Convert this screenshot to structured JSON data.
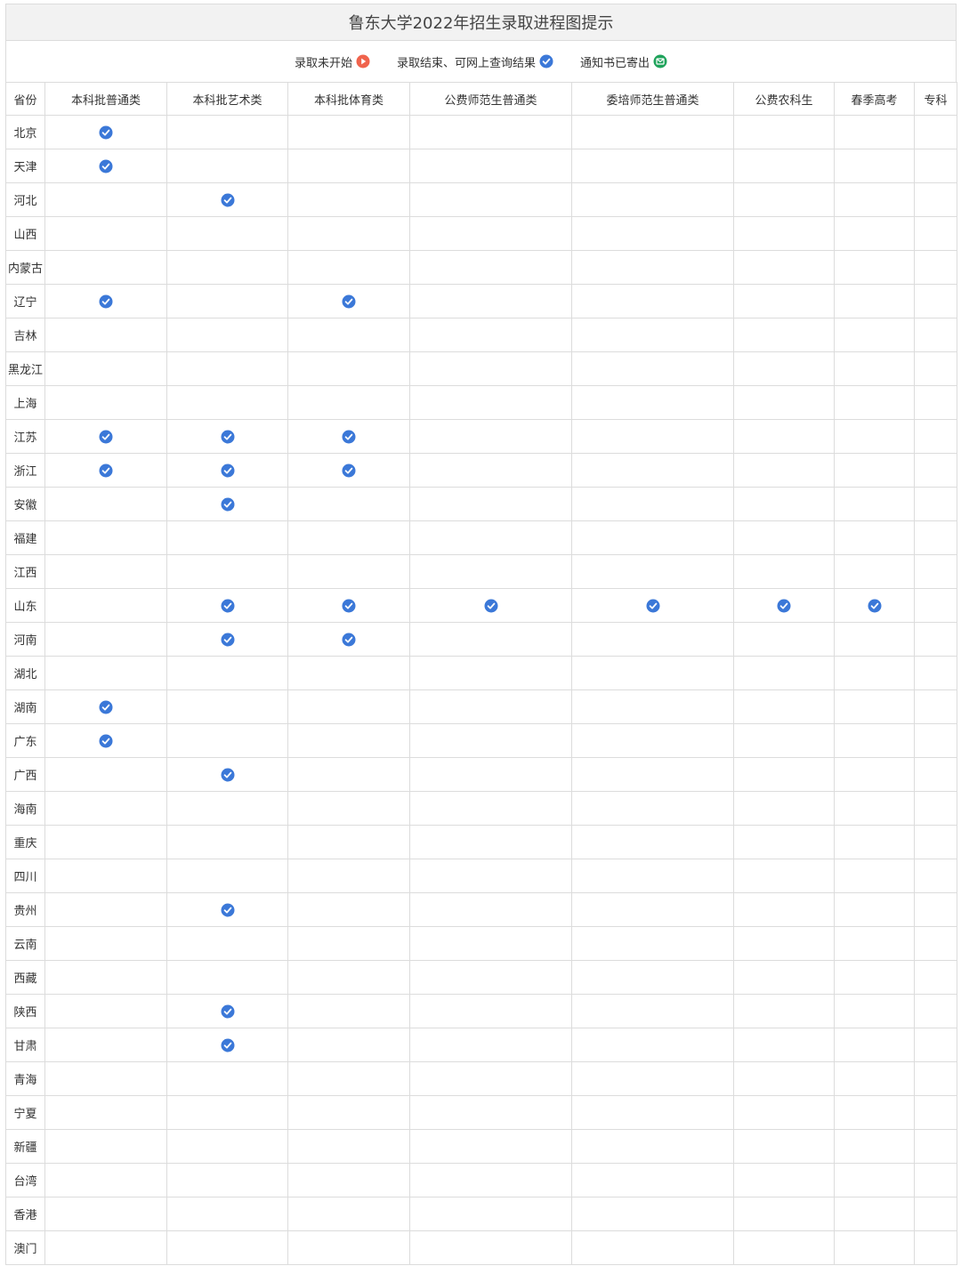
{
  "title": "鲁东大学2022年招生录取进程图提示",
  "legend": [
    {
      "label": "录取未开始",
      "icon": "play-icon",
      "color": "#f0634c"
    },
    {
      "label": "录取结束、可网上查询结果",
      "icon": "check-circle-icon",
      "color": "#3b78d8"
    },
    {
      "label": "通知书已寄出",
      "icon": "mail-icon",
      "color": "#1fa35b"
    }
  ],
  "table": {
    "province_header": "省份",
    "columns": [
      "本科批普通类",
      "本科批艺术类",
      "本科批体育类",
      "公费师范生普通类",
      "委培师范生普通类",
      "公费农科生",
      "春季高考",
      "专科"
    ],
    "rows": [
      {
        "province": "北京",
        "cells": [
          "done",
          "",
          "",
          "",
          "",
          "",
          "",
          ""
        ]
      },
      {
        "province": "天津",
        "cells": [
          "done",
          "",
          "",
          "",
          "",
          "",
          "",
          ""
        ]
      },
      {
        "province": "河北",
        "cells": [
          "",
          "done",
          "",
          "",
          "",
          "",
          "",
          ""
        ]
      },
      {
        "province": "山西",
        "cells": [
          "",
          "",
          "",
          "",
          "",
          "",
          "",
          ""
        ]
      },
      {
        "province": "内蒙古",
        "cells": [
          "",
          "",
          "",
          "",
          "",
          "",
          "",
          ""
        ]
      },
      {
        "province": "辽宁",
        "cells": [
          "done",
          "",
          "done",
          "",
          "",
          "",
          "",
          ""
        ]
      },
      {
        "province": "吉林",
        "cells": [
          "",
          "",
          "",
          "",
          "",
          "",
          "",
          ""
        ]
      },
      {
        "province": "黑龙江",
        "cells": [
          "",
          "",
          "",
          "",
          "",
          "",
          "",
          ""
        ]
      },
      {
        "province": "上海",
        "cells": [
          "",
          "",
          "",
          "",
          "",
          "",
          "",
          ""
        ]
      },
      {
        "province": "江苏",
        "cells": [
          "done",
          "done",
          "done",
          "",
          "",
          "",
          "",
          ""
        ]
      },
      {
        "province": "浙江",
        "cells": [
          "done",
          "done",
          "done",
          "",
          "",
          "",
          "",
          ""
        ]
      },
      {
        "province": "安徽",
        "cells": [
          "",
          "done",
          "",
          "",
          "",
          "",
          "",
          ""
        ]
      },
      {
        "province": "福建",
        "cells": [
          "",
          "",
          "",
          "",
          "",
          "",
          "",
          ""
        ]
      },
      {
        "province": "江西",
        "cells": [
          "",
          "",
          "",
          "",
          "",
          "",
          "",
          ""
        ]
      },
      {
        "province": "山东",
        "cells": [
          "",
          "done",
          "done",
          "done",
          "done",
          "done",
          "done",
          ""
        ]
      },
      {
        "province": "河南",
        "cells": [
          "",
          "done",
          "done",
          "",
          "",
          "",
          "",
          ""
        ]
      },
      {
        "province": "湖北",
        "cells": [
          "",
          "",
          "",
          "",
          "",
          "",
          "",
          ""
        ]
      },
      {
        "province": "湖南",
        "cells": [
          "done",
          "",
          "",
          "",
          "",
          "",
          "",
          ""
        ]
      },
      {
        "province": "广东",
        "cells": [
          "done",
          "",
          "",
          "",
          "",
          "",
          "",
          ""
        ]
      },
      {
        "province": "广西",
        "cells": [
          "",
          "done",
          "",
          "",
          "",
          "",
          "",
          ""
        ]
      },
      {
        "province": "海南",
        "cells": [
          "",
          "",
          "",
          "",
          "",
          "",
          "",
          ""
        ]
      },
      {
        "province": "重庆",
        "cells": [
          "",
          "",
          "",
          "",
          "",
          "",
          "",
          ""
        ]
      },
      {
        "province": "四川",
        "cells": [
          "",
          "",
          "",
          "",
          "",
          "",
          "",
          ""
        ]
      },
      {
        "province": "贵州",
        "cells": [
          "",
          "done",
          "",
          "",
          "",
          "",
          "",
          ""
        ]
      },
      {
        "province": "云南",
        "cells": [
          "",
          "",
          "",
          "",
          "",
          "",
          "",
          ""
        ]
      },
      {
        "province": "西藏",
        "cells": [
          "",
          "",
          "",
          "",
          "",
          "",
          "",
          ""
        ]
      },
      {
        "province": "陕西",
        "cells": [
          "",
          "done",
          "",
          "",
          "",
          "",
          "",
          ""
        ]
      },
      {
        "province": "甘肃",
        "cells": [
          "",
          "done",
          "",
          "",
          "",
          "",
          "",
          ""
        ]
      },
      {
        "province": "青海",
        "cells": [
          "",
          "",
          "",
          "",
          "",
          "",
          "",
          ""
        ]
      },
      {
        "province": "宁夏",
        "cells": [
          "",
          "",
          "",
          "",
          "",
          "",
          "",
          ""
        ]
      },
      {
        "province": "新疆",
        "cells": [
          "",
          "",
          "",
          "",
          "",
          "",
          "",
          ""
        ]
      },
      {
        "province": "台湾",
        "cells": [
          "",
          "",
          "",
          "",
          "",
          "",
          "",
          ""
        ]
      },
      {
        "province": "香港",
        "cells": [
          "",
          "",
          "",
          "",
          "",
          "",
          "",
          ""
        ]
      },
      {
        "province": "澳门",
        "cells": [
          "",
          "",
          "",
          "",
          "",
          "",
          "",
          ""
        ]
      }
    ]
  }
}
